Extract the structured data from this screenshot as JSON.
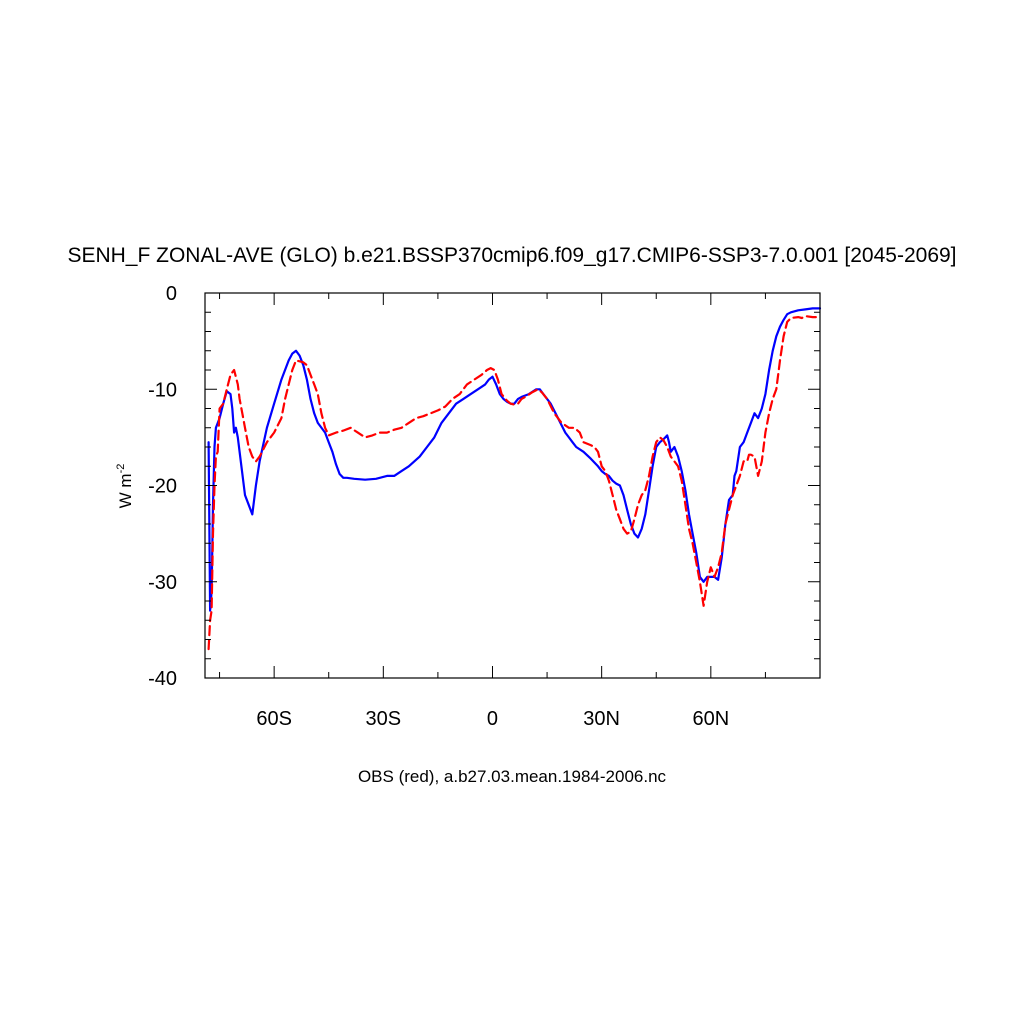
{
  "chart_data": {
    "type": "line",
    "title": "SENH_F ZONAL-AVE (GLO) b.e21.BSSP370cmip6.f09_g17.CMIP6-SSP3-7.0.001 [2045-2069]",
    "xlabel": "OBS (red), a.b27.03.mean.1984-2006.nc",
    "ylabel": "W m",
    "ylabel_sup": "-2",
    "xlim": [
      -79,
      90
    ],
    "ylim": [
      -40,
      0
    ],
    "x_ticks": [
      {
        "value": -60,
        "label": "60S"
      },
      {
        "value": -30,
        "label": "30S"
      },
      {
        "value": 0,
        "label": "0"
      },
      {
        "value": 30,
        "label": "30N"
      },
      {
        "value": 60,
        "label": "60N"
      }
    ],
    "y_ticks": [
      {
        "value": 0,
        "label": "0"
      },
      {
        "value": -10,
        "label": "-10"
      },
      {
        "value": -20,
        "label": "-20"
      },
      {
        "value": -30,
        "label": "-30"
      },
      {
        "value": -40,
        "label": "-40"
      }
    ],
    "grid": false,
    "series": [
      {
        "color": "#0000ff",
        "dash": "solid",
        "points": [
          [
            -78,
            -15.5
          ],
          [
            -77.6,
            -33
          ],
          [
            -77.2,
            -31
          ],
          [
            -76.8,
            -22
          ],
          [
            -76.4,
            -16
          ],
          [
            -76,
            -14
          ],
          [
            -75,
            -13
          ],
          [
            -74,
            -11.5
          ],
          [
            -73,
            -10.2
          ],
          [
            -72,
            -10.5
          ],
          [
            -71.5,
            -12
          ],
          [
            -71,
            -14.5
          ],
          [
            -70.5,
            -14
          ],
          [
            -70,
            -15
          ],
          [
            -69,
            -18
          ],
          [
            -68,
            -21
          ],
          [
            -67,
            -22
          ],
          [
            -66,
            -23
          ],
          [
            -65,
            -20
          ],
          [
            -64,
            -17.5
          ],
          [
            -62,
            -14
          ],
          [
            -60,
            -11.5
          ],
          [
            -58,
            -9
          ],
          [
            -56,
            -7
          ],
          [
            -55,
            -6.3
          ],
          [
            -54,
            -6
          ],
          [
            -53,
            -6.5
          ],
          [
            -52,
            -7.5
          ],
          [
            -51,
            -9
          ],
          [
            -50,
            -11
          ],
          [
            -49,
            -12.5
          ],
          [
            -48,
            -13.5
          ],
          [
            -46,
            -14.5
          ],
          [
            -45,
            -15.5
          ],
          [
            -44,
            -16.5
          ],
          [
            -43,
            -17.8
          ],
          [
            -42,
            -18.8
          ],
          [
            -41,
            -19.2
          ],
          [
            -40,
            -19.2
          ],
          [
            -38,
            -19.3
          ],
          [
            -35,
            -19.4
          ],
          [
            -32,
            -19.3
          ],
          [
            -29,
            -19
          ],
          [
            -27,
            -19
          ],
          [
            -25,
            -18.5
          ],
          [
            -23,
            -18
          ],
          [
            -20,
            -17
          ],
          [
            -18,
            -16
          ],
          [
            -16,
            -15
          ],
          [
            -14,
            -13.5
          ],
          [
            -12,
            -12.5
          ],
          [
            -10,
            -11.5
          ],
          [
            -8,
            -11
          ],
          [
            -6,
            -10.5
          ],
          [
            -4,
            -10
          ],
          [
            -2,
            -9.5
          ],
          [
            -1,
            -9
          ],
          [
            0,
            -8.7
          ],
          [
            1,
            -9.5
          ],
          [
            2,
            -10.5
          ],
          [
            3,
            -11
          ],
          [
            4,
            -11.3
          ],
          [
            5,
            -11.5
          ],
          [
            6,
            -11.5
          ],
          [
            7,
            -11
          ],
          [
            8,
            -10.8
          ],
          [
            10,
            -10.5
          ],
          [
            12,
            -10
          ],
          [
            13,
            -10
          ],
          [
            14,
            -10.5
          ],
          [
            16,
            -11.5
          ],
          [
            18,
            -13
          ],
          [
            20,
            -14.5
          ],
          [
            21,
            -15
          ],
          [
            22,
            -15.5
          ],
          [
            23,
            -16
          ],
          [
            25,
            -16.5
          ],
          [
            27,
            -17.2
          ],
          [
            29,
            -18
          ],
          [
            30,
            -18.5
          ],
          [
            31,
            -18.8
          ],
          [
            32,
            -19
          ],
          [
            33,
            -19.5
          ],
          [
            34,
            -19.8
          ],
          [
            35,
            -20
          ],
          [
            36,
            -21
          ],
          [
            37,
            -22.5
          ],
          [
            38,
            -24
          ],
          [
            39,
            -25
          ],
          [
            40,
            -25.4
          ],
          [
            41,
            -24.5
          ],
          [
            42,
            -23
          ],
          [
            43,
            -20.5
          ],
          [
            44,
            -18
          ],
          [
            45,
            -16
          ],
          [
            46,
            -15.5
          ],
          [
            47,
            -15.2
          ],
          [
            48,
            -14.8
          ],
          [
            48.5,
            -15.5
          ],
          [
            49,
            -16.5
          ],
          [
            50,
            -16
          ],
          [
            51,
            -17
          ],
          [
            52,
            -18.5
          ],
          [
            53,
            -20.5
          ],
          [
            54,
            -23
          ],
          [
            55,
            -25
          ],
          [
            56,
            -27
          ],
          [
            57,
            -29.5
          ],
          [
            58,
            -30
          ],
          [
            59,
            -29.5
          ],
          [
            60,
            -29.5
          ],
          [
            61,
            -29.5
          ],
          [
            62,
            -29.8
          ],
          [
            63,
            -27.5
          ],
          [
            64,
            -24
          ],
          [
            65,
            -21.5
          ],
          [
            66,
            -21
          ],
          [
            66.5,
            -19
          ],
          [
            67,
            -18.5
          ],
          [
            68,
            -16
          ],
          [
            69,
            -15.5
          ],
          [
            70,
            -14.5
          ],
          [
            71,
            -13.5
          ],
          [
            72,
            -12.5
          ],
          [
            73,
            -13
          ],
          [
            74,
            -12
          ],
          [
            75,
            -10.5
          ],
          [
            76,
            -8
          ],
          [
            77,
            -6
          ],
          [
            78,
            -4.5
          ],
          [
            79,
            -3.5
          ],
          [
            80,
            -2.8
          ],
          [
            81,
            -2.2
          ],
          [
            82,
            -2
          ],
          [
            84,
            -1.8
          ],
          [
            86,
            -1.7
          ],
          [
            88,
            -1.6
          ],
          [
            90,
            -1.6
          ]
        ]
      },
      {
        "color": "#ff0000",
        "dash": "dashed",
        "points": [
          [
            -78,
            -37
          ],
          [
            -77.6,
            -34
          ],
          [
            -77.2,
            -33
          ],
          [
            -76.8,
            -25
          ],
          [
            -76.4,
            -20
          ],
          [
            -76,
            -17
          ],
          [
            -75.5,
            -16.5
          ],
          [
            -75,
            -12
          ],
          [
            -74,
            -11.5
          ],
          [
            -73,
            -10
          ],
          [
            -72,
            -8.5
          ],
          [
            -71,
            -8
          ],
          [
            -70,
            -9.5
          ],
          [
            -69.5,
            -11
          ],
          [
            -69,
            -12
          ],
          [
            -68.5,
            -13
          ],
          [
            -68,
            -14
          ],
          [
            -67,
            -16
          ],
          [
            -66,
            -17
          ],
          [
            -65,
            -17.5
          ],
          [
            -64,
            -17
          ],
          [
            -62,
            -15.5
          ],
          [
            -60,
            -14.5
          ],
          [
            -58,
            -13
          ],
          [
            -57,
            -11
          ],
          [
            -56,
            -9.5
          ],
          [
            -55,
            -8
          ],
          [
            -54,
            -7
          ],
          [
            -52,
            -7.2
          ],
          [
            -51,
            -7.5
          ],
          [
            -50,
            -8.5
          ],
          [
            -49,
            -9.5
          ],
          [
            -48,
            -10.5
          ],
          [
            -47,
            -12.5
          ],
          [
            -46,
            -14
          ],
          [
            -45,
            -14.8
          ],
          [
            -43,
            -14.5
          ],
          [
            -41,
            -14.3
          ],
          [
            -39,
            -14
          ],
          [
            -37,
            -14.5
          ],
          [
            -35,
            -15
          ],
          [
            -33,
            -14.8
          ],
          [
            -31,
            -14.5
          ],
          [
            -29,
            -14.5
          ],
          [
            -27,
            -14.2
          ],
          [
            -25,
            -14
          ],
          [
            -23,
            -13.5
          ],
          [
            -21,
            -13
          ],
          [
            -19,
            -12.8
          ],
          [
            -17,
            -12.5
          ],
          [
            -15,
            -12.2
          ],
          [
            -13,
            -11.8
          ],
          [
            -11,
            -11
          ],
          [
            -9,
            -10.5
          ],
          [
            -7,
            -9.5
          ],
          [
            -5,
            -9
          ],
          [
            -3,
            -8.5
          ],
          [
            -1.5,
            -8
          ],
          [
            -0.5,
            -7.8
          ],
          [
            0.5,
            -8
          ],
          [
            1.5,
            -9
          ],
          [
            2.5,
            -10.5
          ],
          [
            4,
            -11.2
          ],
          [
            5,
            -11.5
          ],
          [
            6,
            -11.6
          ],
          [
            7,
            -11.5
          ],
          [
            8,
            -11
          ],
          [
            9,
            -10.8
          ],
          [
            11,
            -10.3
          ],
          [
            12.5,
            -10
          ],
          [
            13.5,
            -10.3
          ],
          [
            15,
            -11
          ],
          [
            17,
            -12.5
          ],
          [
            19,
            -13.5
          ],
          [
            21,
            -14
          ],
          [
            22.5,
            -14
          ],
          [
            24,
            -14.5
          ],
          [
            25,
            -15.5
          ],
          [
            27,
            -15.8
          ],
          [
            28,
            -16
          ],
          [
            29,
            -16.5
          ],
          [
            30,
            -18
          ],
          [
            31,
            -18.5
          ],
          [
            32,
            -19.5
          ],
          [
            33,
            -21
          ],
          [
            34,
            -22.5
          ],
          [
            35,
            -23.5
          ],
          [
            36,
            -24.5
          ],
          [
            37,
            -25
          ],
          [
            38,
            -24.8
          ],
          [
            39,
            -23.5
          ],
          [
            40,
            -22
          ],
          [
            41,
            -21
          ],
          [
            42,
            -20.5
          ],
          [
            43,
            -19
          ],
          [
            44,
            -17
          ],
          [
            45,
            -15.5
          ],
          [
            46,
            -15
          ],
          [
            47,
            -15.3
          ],
          [
            48,
            -16
          ],
          [
            49,
            -17
          ],
          [
            50,
            -17.5
          ],
          [
            51,
            -18
          ],
          [
            52,
            -19.5
          ],
          [
            53,
            -22
          ],
          [
            54,
            -24.5
          ],
          [
            55,
            -26
          ],
          [
            56,
            -28
          ],
          [
            57,
            -30
          ],
          [
            58,
            -32.5
          ],
          [
            59,
            -30
          ],
          [
            60,
            -28.5
          ],
          [
            61,
            -29.5
          ],
          [
            62,
            -28.5
          ],
          [
            63,
            -27
          ],
          [
            64,
            -24
          ],
          [
            65,
            -22.5
          ],
          [
            66,
            -21
          ],
          [
            67,
            -20
          ],
          [
            68,
            -19
          ],
          [
            69,
            -17.5
          ],
          [
            70,
            -17.5
          ],
          [
            70.5,
            -16.8
          ],
          [
            71,
            -16.8
          ],
          [
            72,
            -17
          ],
          [
            73,
            -19
          ],
          [
            74,
            -17.5
          ],
          [
            75,
            -14.5
          ],
          [
            76,
            -12.5
          ],
          [
            77,
            -11
          ],
          [
            78,
            -10
          ],
          [
            79,
            -7
          ],
          [
            80,
            -4.5
          ],
          [
            81,
            -3
          ],
          [
            82,
            -2.6
          ],
          [
            84,
            -2.5
          ],
          [
            85,
            -2.6
          ],
          [
            86,
            -2.4
          ],
          [
            88,
            -2.5
          ],
          [
            90,
            -2.5
          ]
        ]
      }
    ]
  }
}
